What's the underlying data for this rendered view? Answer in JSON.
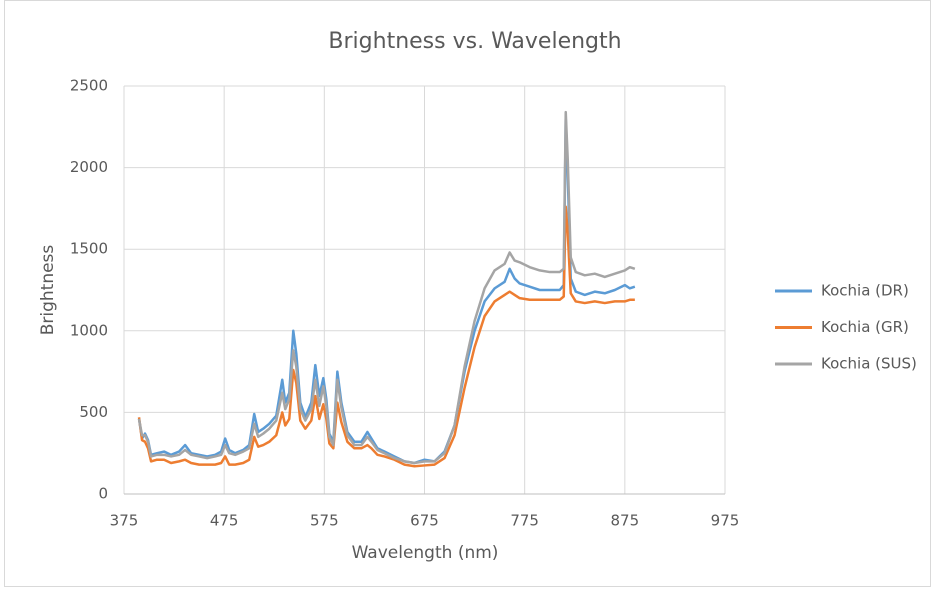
{
  "chart_data": {
    "type": "line",
    "title": "Brightness vs. Wavelength",
    "x_label": "Wavelength (nm)",
    "y_label": "Brightness",
    "x": [
      390,
      393,
      396,
      399,
      402,
      408,
      415,
      422,
      430,
      436,
      442,
      450,
      458,
      466,
      472,
      476,
      480,
      486,
      494,
      500,
      505,
      509,
      514,
      520,
      527,
      533,
      536,
      540,
      544,
      547,
      551,
      556,
      562,
      566,
      570,
      574,
      577,
      580,
      584,
      588,
      592,
      598,
      605,
      612,
      618,
      622,
      628,
      635,
      645,
      655,
      665,
      675,
      685,
      695,
      705,
      715,
      725,
      735,
      745,
      755,
      760,
      765,
      770,
      780,
      790,
      800,
      810,
      814,
      816,
      818,
      821,
      826,
      835,
      845,
      855,
      865,
      875,
      880,
      885
    ],
    "series": [
      {
        "name": "Kochia (DR)",
        "color": "#5b9bd5",
        "values": [
          460,
          340,
          370,
          330,
          240,
          250,
          260,
          240,
          260,
          300,
          250,
          240,
          230,
          240,
          260,
          340,
          270,
          250,
          270,
          300,
          490,
          380,
          400,
          430,
          480,
          700,
          560,
          620,
          1000,
          860,
          560,
          470,
          560,
          790,
          600,
          710,
          580,
          370,
          320,
          750,
          560,
          380,
          320,
          320,
          380,
          340,
          280,
          260,
          230,
          200,
          190,
          210,
          200,
          260,
          420,
          750,
          1000,
          1180,
          1260,
          1300,
          1380,
          1320,
          1290,
          1270,
          1250,
          1250,
          1250,
          1280,
          2300,
          1950,
          1320,
          1240,
          1220,
          1240,
          1230,
          1250,
          1280,
          1260,
          1270
        ]
      },
      {
        "name": "Kochia (GR)",
        "color": "#ed7d31",
        "values": [
          470,
          330,
          320,
          280,
          200,
          210,
          210,
          190,
          200,
          210,
          190,
          180,
          180,
          180,
          190,
          230,
          180,
          180,
          190,
          210,
          350,
          290,
          300,
          320,
          360,
          500,
          420,
          460,
          760,
          680,
          450,
          400,
          450,
          600,
          460,
          550,
          460,
          310,
          280,
          560,
          440,
          320,
          280,
          280,
          300,
          280,
          240,
          230,
          210,
          180,
          170,
          175,
          180,
          220,
          360,
          650,
          900,
          1090,
          1180,
          1220,
          1240,
          1220,
          1200,
          1190,
          1190,
          1190,
          1190,
          1210,
          1760,
          1600,
          1230,
          1180,
          1170,
          1180,
          1170,
          1180,
          1180,
          1190,
          1190
        ]
      },
      {
        "name": "Kochia (SUS)",
        "color": "#a5a5a5",
        "values": [
          460,
          360,
          360,
          320,
          230,
          240,
          240,
          230,
          240,
          270,
          240,
          230,
          220,
          230,
          240,
          300,
          250,
          240,
          260,
          280,
          430,
          350,
          370,
          400,
          450,
          620,
          520,
          580,
          880,
          780,
          520,
          450,
          520,
          700,
          540,
          660,
          540,
          350,
          300,
          700,
          530,
          360,
          300,
          300,
          350,
          320,
          270,
          250,
          220,
          200,
          190,
          200,
          200,
          250,
          420,
          780,
          1060,
          1260,
          1370,
          1410,
          1480,
          1430,
          1420,
          1390,
          1370,
          1360,
          1360,
          1380,
          2340,
          2050,
          1450,
          1360,
          1340,
          1350,
          1330,
          1350,
          1370,
          1390,
          1380
        ]
      }
    ],
    "xlim": [
      375,
      975
    ],
    "xticks": [
      375,
      475,
      575,
      675,
      775,
      875,
      975
    ],
    "ylim": [
      0,
      2500
    ],
    "yticks": [
      0,
      500,
      1000,
      1500,
      2000,
      2500
    ],
    "grid": true,
    "legend": "right"
  }
}
